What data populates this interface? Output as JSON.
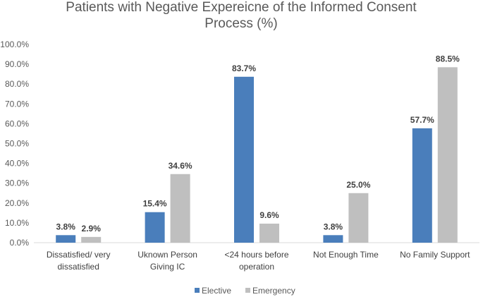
{
  "chart_data": {
    "type": "bar",
    "title_lines": [
      "Patients with Negative Expereicne of the Informed Consent",
      "Process (%)"
    ],
    "categories": [
      [
        "Dissatisfied/ very",
        "dissatisfied"
      ],
      [
        "Uknown Person",
        "Giving IC"
      ],
      [
        "<24 hours before",
        "operation"
      ],
      [
        "Not Enough Time"
      ],
      [
        "No Family Support"
      ]
    ],
    "series": [
      {
        "name": "Elective",
        "color": "#4a7ebb",
        "values": [
          3.8,
          15.4,
          83.7,
          3.8,
          57.7
        ],
        "labels": [
          "3.8%",
          "15.4%",
          "83.7%",
          "3.8%",
          "57.7%"
        ]
      },
      {
        "name": "Emergency",
        "color": "#bfbfbf",
        "values": [
          2.9,
          34.6,
          9.6,
          25.0,
          88.5
        ],
        "labels": [
          "2.9%",
          "34.6%",
          "9.6%",
          "25.0%",
          "88.5%"
        ]
      }
    ],
    "yticks": [
      "0.0%",
      "10.0%",
      "20.0%",
      "30.0%",
      "40.0%",
      "50.0%",
      "60.0%",
      "70.0%",
      "80.0%",
      "90.0%",
      "100.0%"
    ],
    "ylim": [
      0,
      100
    ],
    "grid": false,
    "legend_position": "bottom"
  }
}
